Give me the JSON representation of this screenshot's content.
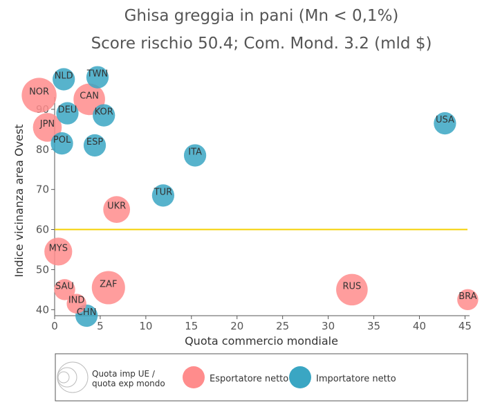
{
  "chart_data": {
    "type": "scatter",
    "title": "Ghisa greggia in pani (Mn < 0,1%)",
    "subtitle": "Score rischio 50.4; Com. Mond. 3.2 (mld $)",
    "xlabel": "Quota commercio mondiale",
    "ylabel": "Indice vicinanza area Ovest",
    "xlim": [
      0,
      45.5
    ],
    "ylim": [
      38.5,
      100
    ],
    "xticks": [
      0,
      5,
      10,
      15,
      20,
      25,
      30,
      35,
      40,
      45
    ],
    "yticks": [
      40,
      50,
      60,
      70,
      80,
      90
    ],
    "reference_line": {
      "y": 60,
      "color": "#f5d000"
    },
    "legend": {
      "size_label": "Quota imp UE / quota exp mondo",
      "size_label_lines": [
        "Quota imp UE /",
        "quota exp mondo"
      ],
      "placement": "bottom",
      "entries": [
        {
          "key": "exporter",
          "label": "Esportatore netto",
          "color": "#ff8c8c"
        },
        {
          "key": "importer",
          "label": "Importatore netto",
          "color": "#3aa6c3"
        }
      ]
    },
    "points": [
      {
        "label": "NOR",
        "x": -1.7,
        "y": 93.5,
        "size": 2.2,
        "type": "exporter"
      },
      {
        "label": "CAN",
        "x": 3.8,
        "y": 92.5,
        "size": 1.8,
        "type": "exporter"
      },
      {
        "label": "JPN",
        "x": -0.8,
        "y": 85.5,
        "size": 1.5,
        "type": "exporter"
      },
      {
        "label": "UKR",
        "x": 6.8,
        "y": 65.0,
        "size": 1.3,
        "type": "exporter"
      },
      {
        "label": "MYS",
        "x": 0.4,
        "y": 54.5,
        "size": 1.4,
        "type": "exporter"
      },
      {
        "label": "SAU",
        "x": 1.1,
        "y": 45.0,
        "size": 0.8,
        "type": "exporter"
      },
      {
        "label": "ZAF",
        "x": 5.9,
        "y": 45.5,
        "size": 2.0,
        "type": "exporter"
      },
      {
        "label": "IND",
        "x": 2.4,
        "y": 41.5,
        "size": 0.7,
        "type": "exporter"
      },
      {
        "label": "RUS",
        "x": 32.6,
        "y": 45.0,
        "size": 1.8,
        "type": "exporter"
      },
      {
        "label": "BRA",
        "x": 45.3,
        "y": 42.5,
        "size": 0.8,
        "type": "exporter"
      },
      {
        "label": "NLD",
        "x": 1.0,
        "y": 97.5,
        "size": 0.9,
        "type": "importer"
      },
      {
        "label": "TWN",
        "x": 4.7,
        "y": 98.0,
        "size": 0.9,
        "type": "importer"
      },
      {
        "label": "DEU",
        "x": 1.4,
        "y": 89.0,
        "size": 0.9,
        "type": "importer"
      },
      {
        "label": "KOR",
        "x": 5.4,
        "y": 88.5,
        "size": 0.9,
        "type": "importer"
      },
      {
        "label": "POL",
        "x": 0.8,
        "y": 81.5,
        "size": 0.9,
        "type": "importer"
      },
      {
        "label": "ESP",
        "x": 4.4,
        "y": 81.0,
        "size": 0.9,
        "type": "importer"
      },
      {
        "label": "ITA",
        "x": 15.4,
        "y": 78.5,
        "size": 0.9,
        "type": "importer"
      },
      {
        "label": "TUR",
        "x": 11.9,
        "y": 68.5,
        "size": 0.9,
        "type": "importer"
      },
      {
        "label": "USA",
        "x": 42.8,
        "y": 86.5,
        "size": 0.9,
        "type": "importer"
      },
      {
        "label": "CHN",
        "x": 3.5,
        "y": 38.5,
        "size": 0.9,
        "type": "importer"
      }
    ]
  }
}
